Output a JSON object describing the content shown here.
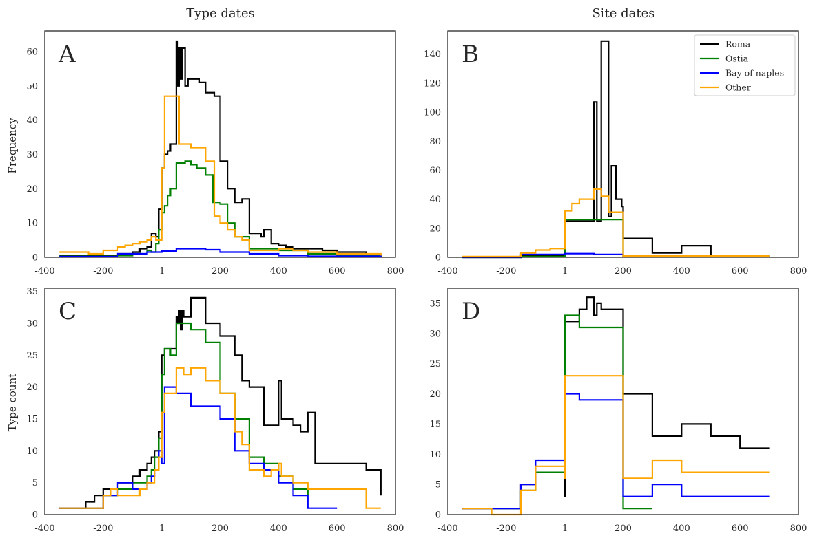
{
  "figure": {
    "col_titles": [
      "Type dates",
      "Site dates"
    ],
    "ylabels": [
      "Frequency",
      "Type count"
    ]
  },
  "colors": {
    "Roma": "#000000",
    "Ostia": "#008000",
    "Bay of naples": "#0000ff",
    "Other": "#ffa500",
    "axes": "#262626"
  },
  "chart_data": [
    {
      "type": "line",
      "panel": "A",
      "title": "Type dates",
      "xlabel": "",
      "ylabel": "Frequency",
      "xlim": [
        -400,
        800
      ],
      "ylim": [
        0,
        66
      ],
      "xticks": [
        -400,
        -200,
        1,
        200,
        400,
        600,
        800
      ],
      "xticklabels": [
        "-400",
        "-200",
        "1",
        "200",
        "400",
        "600",
        "800"
      ],
      "yticks": [
        0,
        10,
        20,
        30,
        40,
        50,
        60
      ],
      "series": [
        {
          "name": "Roma",
          "x": [
            -350,
            -150,
            -100,
            -75,
            -50,
            -35,
            -20,
            -10,
            0,
            10,
            20,
            30,
            50,
            55,
            60,
            65,
            70,
            80,
            90,
            100,
            130,
            150,
            180,
            200,
            225,
            250,
            275,
            300,
            340,
            350,
            375,
            400,
            425,
            450,
            500,
            550,
            600,
            650,
            700,
            750
          ],
          "y": [
            0.5,
            1,
            1.5,
            2.5,
            3,
            7,
            6,
            14,
            26,
            30,
            31,
            33,
            63,
            50,
            61,
            52,
            61,
            50,
            52,
            52,
            51,
            48,
            47,
            28,
            20,
            16,
            17,
            7,
            6,
            8,
            4,
            3.5,
            3,
            2.5,
            2.5,
            2,
            1.5,
            1.5,
            0.5,
            0
          ]
        },
        {
          "name": "Ostia",
          "x": [
            -350,
            -150,
            -100,
            -50,
            -35,
            -20,
            -10,
            0,
            10,
            20,
            30,
            50,
            80,
            100,
            120,
            150,
            175,
            200,
            225,
            250,
            300,
            400,
            500,
            600,
            750
          ],
          "y": [
            0.3,
            0.5,
            1,
            2,
            1.5,
            4,
            8,
            13,
            15,
            18,
            20,
            27.5,
            28,
            27,
            26,
            24,
            16,
            15.5,
            10,
            6,
            2.5,
            2,
            1,
            0.5,
            0
          ]
        },
        {
          "name": "Bay of naples",
          "x": [
            -350,
            -150,
            -50,
            0,
            50,
            100,
            150,
            200,
            300,
            400,
            500,
            750
          ],
          "y": [
            0.2,
            1,
            1.5,
            1.8,
            2.5,
            2.5,
            2.2,
            1.5,
            1,
            0.5,
            0.3,
            0
          ]
        },
        {
          "name": "Other",
          "x": [
            -350,
            -250,
            -200,
            -150,
            -125,
            -100,
            -75,
            -50,
            -35,
            -20,
            0,
            10,
            50,
            60,
            100,
            150,
            180,
            200,
            225,
            250,
            275,
            300,
            350,
            400,
            450,
            500,
            550,
            600,
            700,
            750
          ],
          "y": [
            1.5,
            1,
            2,
            3,
            3.5,
            4,
            4.5,
            5,
            6,
            5,
            26,
            47,
            47,
            33,
            32,
            28,
            12,
            10,
            8,
            6,
            5,
            2,
            2,
            2.5,
            2,
            1.5,
            1.5,
            1,
            1,
            0.5
          ]
        }
      ]
    },
    {
      "type": "line",
      "panel": "B",
      "title": "Site dates",
      "xlabel": "",
      "ylabel": "",
      "xlim": [
        -400,
        800
      ],
      "ylim": [
        0,
        156
      ],
      "xticks": [
        -400,
        -200,
        1,
        200,
        400,
        600,
        800
      ],
      "xticklabels": [
        "-400",
        "-200",
        "1",
        "200",
        "400",
        "600",
        "800"
      ],
      "yticks": [
        0,
        20,
        40,
        60,
        80,
        100,
        120,
        140
      ],
      "legend": {
        "placement": "top-right",
        "entries": [
          "Roma",
          "Ostia",
          "Bay of naples",
          "Other"
        ]
      },
      "series": [
        {
          "name": "Roma",
          "x": [
            -350,
            -150,
            1,
            100,
            110,
            125,
            140,
            150,
            160,
            175,
            195,
            200,
            300,
            400,
            500,
            700
          ],
          "y": [
            0,
            1,
            25,
            107,
            25,
            149,
            149,
            28,
            63,
            40,
            35,
            13,
            3,
            8,
            1,
            1
          ]
        },
        {
          "name": "Ostia",
          "x": [
            -350,
            -150,
            1,
            100,
            200,
            300,
            700
          ],
          "y": [
            0,
            0.5,
            26,
            26,
            1,
            0.5,
            0.5
          ]
        },
        {
          "name": "Bay of naples",
          "x": [
            -350,
            -150,
            1,
            100,
            200,
            300,
            700
          ],
          "y": [
            0,
            2,
            2.5,
            2,
            1,
            0.5,
            0.5
          ]
        },
        {
          "name": "Other",
          "x": [
            -350,
            -250,
            -150,
            -100,
            -50,
            1,
            25,
            50,
            100,
            125,
            150,
            200,
            300,
            700
          ],
          "y": [
            0.5,
            0.5,
            3,
            5,
            6,
            32,
            37,
            40,
            47,
            42,
            31,
            1,
            1,
            1
          ]
        }
      ]
    },
    {
      "type": "line",
      "panel": "C",
      "title": "",
      "xlabel": "",
      "ylabel": "Type count",
      "xlim": [
        -400,
        800
      ],
      "ylim": [
        0,
        35.5
      ],
      "xticks": [
        -400,
        -200,
        1,
        200,
        400,
        600,
        800
      ],
      "xticklabels": [
        "-400",
        "-200",
        "1",
        "200",
        "400",
        "600",
        "800"
      ],
      "yticks": [
        0,
        5,
        10,
        15,
        20,
        25,
        30,
        35
      ],
      "series": [
        {
          "name": "Roma",
          "x": [
            -350,
            -260,
            -230,
            -200,
            -175,
            -150,
            -100,
            -75,
            -50,
            -35,
            -25,
            -10,
            0,
            10,
            30,
            50,
            55,
            60,
            65,
            70,
            75,
            100,
            150,
            200,
            250,
            275,
            300,
            350,
            400,
            410,
            450,
            475,
            500,
            525,
            700,
            750
          ],
          "y": [
            1,
            2,
            3,
            4,
            4,
            5,
            6,
            7,
            8,
            9,
            10,
            13,
            25,
            26,
            26,
            31,
            30,
            32,
            29,
            32,
            31,
            34,
            30,
            28,
            25,
            21,
            20,
            14,
            21,
            15,
            14,
            13,
            16,
            8,
            7,
            3
          ]
        },
        {
          "name": "Ostia",
          "x": [
            -350,
            -200,
            -150,
            -100,
            -50,
            -35,
            -25,
            -10,
            0,
            10,
            30,
            50,
            100,
            150,
            200,
            250,
            300,
            350,
            400,
            450,
            500
          ],
          "y": [
            1,
            3,
            4,
            5,
            6,
            7,
            9,
            12,
            22,
            26,
            25,
            30,
            29,
            27,
            19,
            15,
            9,
            8,
            6,
            4,
            3
          ]
        },
        {
          "name": "Bay of naples",
          "x": [
            -350,
            -200,
            -150,
            -100,
            -50,
            -35,
            -25,
            -10,
            0,
            10,
            50,
            100,
            150,
            200,
            250,
            300,
            350,
            400,
            450,
            500,
            600
          ],
          "y": [
            1,
            3,
            5,
            4,
            5,
            6,
            7,
            10,
            8,
            20,
            19,
            17,
            17,
            15,
            10,
            8,
            7,
            5,
            3,
            1,
            1
          ]
        },
        {
          "name": "Other",
          "x": [
            -350,
            -200,
            -175,
            -150,
            -75,
            -50,
            -25,
            -10,
            0,
            10,
            50,
            75,
            100,
            150,
            200,
            250,
            275,
            300,
            350,
            375,
            400,
            410,
            450,
            500,
            600,
            700,
            750
          ],
          "y": [
            1,
            3,
            4,
            3,
            4,
            5,
            7,
            9,
            16,
            19,
            23,
            22,
            23,
            21,
            19,
            13,
            11,
            7,
            6,
            7,
            8,
            6,
            5,
            4,
            4,
            1,
            1
          ]
        }
      ]
    },
    {
      "type": "line",
      "panel": "D",
      "title": "",
      "xlabel": "",
      "ylabel": "",
      "xlim": [
        -400,
        800
      ],
      "ylim": [
        0,
        37.5
      ],
      "xticks": [
        -400,
        -200,
        1,
        200,
        400,
        600,
        800
      ],
      "xticklabels": [
        "-400",
        "-200",
        "1",
        "200",
        "400",
        "600",
        "800"
      ],
      "yticks": [
        0,
        5,
        10,
        15,
        20,
        25,
        30,
        35
      ],
      "series": [
        {
          "name": "Roma",
          "x": [
            -350,
            -150,
            -100,
            0,
            1,
            50,
            75,
            100,
            110,
            125,
            200,
            300,
            400,
            500,
            600,
            700
          ],
          "y": [
            1,
            5,
            7,
            3,
            32,
            34,
            36,
            33,
            35,
            34,
            20,
            13,
            15,
            13,
            11,
            11
          ]
        },
        {
          "name": "Ostia",
          "x": [
            -350,
            -150,
            -100,
            0,
            1,
            50,
            200,
            300
          ],
          "y": [
            1,
            4,
            7,
            8,
            33,
            31,
            1,
            1
          ]
        },
        {
          "name": "Bay of naples",
          "x": [
            -350,
            -150,
            -100,
            0,
            1,
            50,
            200,
            300,
            400,
            700
          ],
          "y": [
            1,
            5,
            9,
            9,
            20,
            19,
            3,
            5,
            3,
            3
          ]
        },
        {
          "name": "Other",
          "x": [
            -350,
            -250,
            -150,
            -100,
            0,
            1,
            200,
            300,
            400,
            700
          ],
          "y": [
            1,
            0,
            4,
            8,
            6,
            23,
            6,
            9,
            7,
            7
          ]
        }
      ]
    }
  ]
}
